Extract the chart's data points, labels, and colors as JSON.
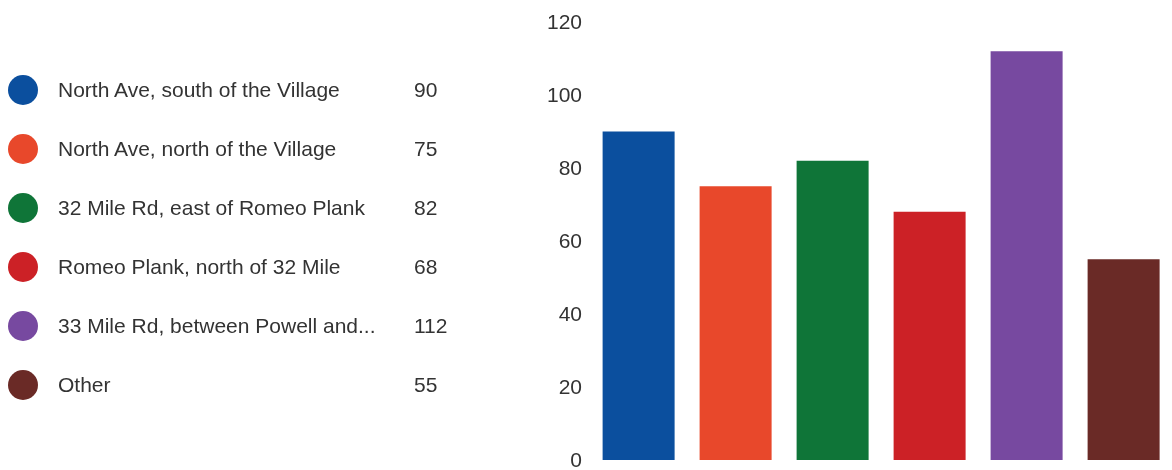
{
  "chart_data": {
    "type": "bar",
    "categories": [
      null,
      null,
      null,
      null,
      null,
      null
    ],
    "series": [
      {
        "name": "North Ave, south of the Village",
        "color": "#0b4f9e",
        "values": [
          90,
          null,
          null,
          null,
          null,
          null
        ]
      },
      {
        "name": "North Ave, north of the Village",
        "color": "#e8482b",
        "values": [
          null,
          75,
          null,
          null,
          null,
          null
        ]
      },
      {
        "name": "32 Mile Rd, east of Romeo Plank",
        "color": "#0f7538",
        "values": [
          null,
          null,
          82,
          null,
          null,
          null
        ]
      },
      {
        "name": "Romeo Plank, north of 32 Mile",
        "color": "#cc2126",
        "values": [
          null,
          null,
          null,
          68,
          null,
          null
        ]
      },
      {
        "name": "33 Mile Rd, between Powell and...",
        "color": "#7749a0",
        "values": [
          null,
          null,
          null,
          null,
          112,
          null
        ]
      },
      {
        "name": "Other",
        "color": "#6a2a26",
        "values": [
          null,
          null,
          null,
          null,
          null,
          55
        ]
      }
    ],
    "stacked": true,
    "ylim": [
      0,
      120
    ],
    "yticks": [
      0,
      20,
      40,
      60,
      80,
      100,
      120
    ],
    "annotations": [
      "90",
      "75",
      "82",
      "68",
      "112",
      "55"
    ],
    "grid": false,
    "legend": "left",
    "tick_labels": "y"
  }
}
